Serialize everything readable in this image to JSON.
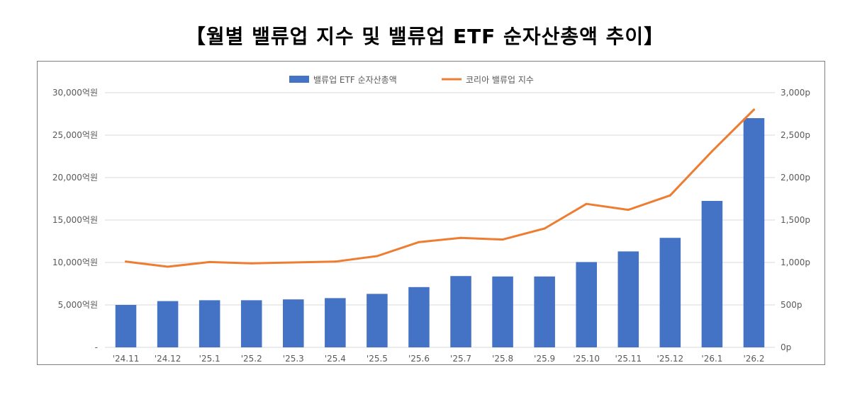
{
  "title": "【월별 밸류업 지수 및 밸류업 ETF 순자산총액 추이】",
  "chart_data": {
    "type": "bar",
    "categories": [
      "'24.11",
      "'24.12",
      "'25.1",
      "'25.2",
      "'25.3",
      "'25.4",
      "'25.5",
      "'25.6",
      "'25.7",
      "'25.8",
      "'25.9",
      "'25.10",
      "'25.11",
      "'25.12",
      "'26.1",
      "'26.2"
    ],
    "series": [
      {
        "name": "밸류업 ETF 순자산총액",
        "type": "bar",
        "axis": "left",
        "color": "#4472C4",
        "values": [
          5000,
          5450,
          5550,
          5550,
          5650,
          5800,
          6300,
          7100,
          8400,
          8350,
          8350,
          10050,
          11300,
          12900,
          17250,
          27000
        ]
      },
      {
        "name": "코리아 밸류업 지수",
        "type": "line",
        "axis": "right",
        "color": "#ED7D31",
        "values": [
          1010,
          950,
          1005,
          990,
          1000,
          1010,
          1075,
          1240,
          1290,
          1270,
          1400,
          1690,
          1620,
          1790,
          2310,
          2800
        ]
      }
    ],
    "y_left": {
      "ylim": [
        0,
        30000
      ],
      "ticks": [
        0,
        5000,
        10000,
        15000,
        20000,
        25000,
        30000
      ],
      "tick_labels": [
        "-",
        "5,000억원",
        "10,000억원",
        "15,000억원",
        "20,000억원",
        "25,000억원",
        "30,000억원"
      ]
    },
    "y_right": {
      "ylim": [
        0,
        3000
      ],
      "ticks": [
        0,
        500,
        1000,
        1500,
        2000,
        2500,
        3000
      ],
      "tick_labels": [
        "0p",
        "500p",
        "1,000p",
        "1,500p",
        "2,000p",
        "2,500p",
        "3,000p"
      ]
    },
    "grid": true,
    "legend_position": "top-center"
  }
}
